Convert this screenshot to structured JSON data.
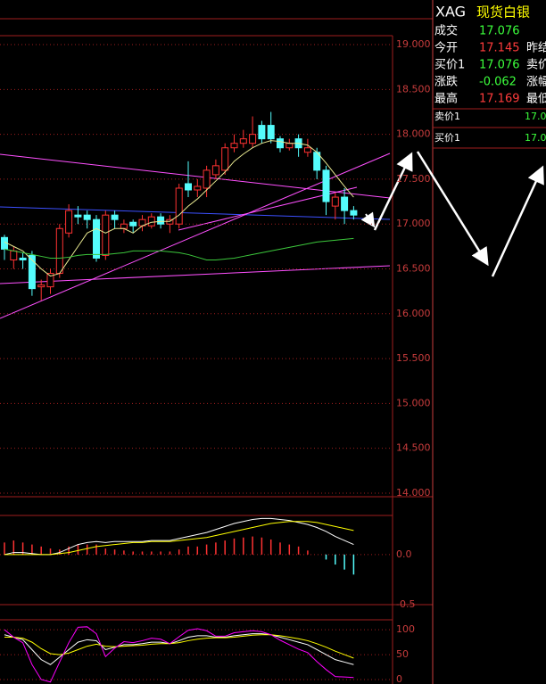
{
  "chart_data": [
    {
      "type": "candlestick",
      "up_color": "#ff3232",
      "down_color": "#54fcfc",
      "grid": true,
      "ylim": [
        13.96,
        19.1
      ],
      "yticks": [
        {
          "value": 19,
          "label": "19.000"
        },
        {
          "value": 18.5,
          "label": "18.500"
        },
        {
          "value": 18,
          "label": "18.000"
        },
        {
          "value": 17.5,
          "label": "17.500"
        },
        {
          "value": 17,
          "label": "17.000"
        },
        {
          "value": 16.5,
          "label": "16.500"
        },
        {
          "value": 16,
          "label": "16.000"
        },
        {
          "value": 15.5,
          "label": "15.500"
        },
        {
          "value": 15,
          "label": "15.000"
        },
        {
          "value": 14.5,
          "label": "14.500"
        },
        {
          "value": 14,
          "label": "14.000"
        }
      ],
      "open": [
        16.85,
        16.6,
        16.62,
        16.65,
        16.3,
        16.3,
        16.45,
        16.9,
        17.1,
        17.1,
        17.05,
        16.65,
        17.1,
        16.95,
        17.02,
        16.98,
        16.98,
        17.08,
        17.0,
        17.0,
        17.45,
        17.38,
        17.4,
        17.55,
        17.6,
        17.85,
        17.9,
        17.9,
        18.1,
        18.1,
        17.95,
        17.85,
        17.95,
        17.8,
        17.8,
        17.6,
        17.2,
        17.3,
        17.15
      ],
      "high": [
        16.88,
        16.75,
        16.68,
        16.7,
        16.38,
        16.5,
        17.0,
        17.22,
        17.2,
        17.15,
        17.1,
        17.15,
        17.15,
        17.05,
        17.05,
        17.1,
        17.12,
        17.12,
        17.1,
        17.45,
        17.7,
        17.5,
        17.65,
        17.72,
        17.9,
        18.0,
        18.05,
        18.2,
        18.15,
        18.25,
        17.98,
        17.95,
        18.0,
        17.95,
        17.85,
        17.65,
        17.35,
        17.4,
        17.2
      ],
      "low": [
        16.6,
        16.5,
        16.5,
        16.2,
        16.15,
        16.22,
        16.4,
        16.85,
        17.0,
        16.95,
        16.58,
        16.6,
        16.95,
        16.9,
        16.9,
        16.92,
        16.95,
        16.95,
        16.9,
        16.95,
        17.3,
        17.3,
        17.3,
        17.5,
        17.55,
        17.8,
        17.85,
        17.85,
        17.9,
        17.9,
        17.8,
        17.82,
        17.75,
        17.75,
        17.5,
        17.1,
        17.05,
        17.0,
        17.05
      ],
      "close": [
        16.72,
        16.7,
        16.6,
        16.28,
        16.32,
        16.45,
        16.95,
        17.15,
        17.08,
        17.05,
        16.62,
        17.1,
        17.05,
        17.0,
        16.98,
        17.05,
        17.08,
        17.0,
        17.05,
        17.4,
        17.38,
        17.42,
        17.6,
        17.65,
        17.85,
        17.9,
        17.95,
        18.0,
        17.95,
        17.95,
        17.85,
        17.9,
        17.85,
        17.85,
        17.6,
        17.25,
        17.3,
        17.15,
        17.1
      ],
      "series": [
        {
          "color": "#e8e890",
          "values": [
            16.8,
            16.75,
            16.7,
            16.6,
            16.5,
            16.42,
            16.45,
            16.6,
            16.75,
            16.9,
            16.95,
            16.9,
            16.95,
            16.95,
            16.9,
            16.98,
            17.02,
            17.03,
            17.03,
            17.1,
            17.2,
            17.28,
            17.38,
            17.48,
            17.58,
            17.7,
            17.78,
            17.85,
            17.9,
            17.93,
            17.92,
            17.9,
            17.9,
            17.88,
            17.8,
            17.68,
            17.55,
            17.42,
            17.3
          ]
        },
        {
          "color": "#3cc83c",
          "values": [
            16.72,
            16.7,
            16.68,
            16.66,
            16.64,
            16.62,
            16.62,
            16.63,
            16.65,
            16.66,
            16.66,
            16.66,
            16.67,
            16.68,
            16.7,
            16.7,
            16.7,
            16.7,
            16.69,
            16.68,
            16.66,
            16.63,
            16.6,
            16.6,
            16.61,
            16.62,
            16.64,
            16.66,
            16.68,
            16.7,
            16.72,
            16.74,
            16.76,
            16.78,
            16.8,
            16.81,
            16.82,
            16.83,
            16.84
          ]
        }
      ]
    },
    {
      "type": "bar",
      "up_color": "#ff3232",
      "down_color": "#54fcfc",
      "ylim": [
        -0.5,
        0.39
      ],
      "yticks": [
        {
          "value": 0,
          "label": "0.0"
        },
        -0.5
      ],
      "values": [
        0.12,
        0.14,
        0.12,
        0.1,
        0.08,
        0.06,
        0.05,
        0.08,
        0.1,
        0.1,
        0.1,
        0.06,
        0.05,
        0.04,
        0.03,
        0.03,
        0.03,
        0.03,
        0.03,
        0.05,
        0.08,
        0.08,
        0.1,
        0.12,
        0.14,
        0.16,
        0.17,
        0.18,
        0.17,
        0.15,
        0.12,
        0.1,
        0.08,
        0.04,
        0.0,
        -0.05,
        -0.1,
        -0.15,
        -0.2
      ],
      "series": [
        {
          "color": "#ffffff",
          "values": [
            0.0,
            0.02,
            0.02,
            0.01,
            0.0,
            0.0,
            0.02,
            0.06,
            0.1,
            0.12,
            0.13,
            0.12,
            0.13,
            0.13,
            0.13,
            0.13,
            0.14,
            0.14,
            0.14,
            0.16,
            0.18,
            0.2,
            0.22,
            0.25,
            0.28,
            0.31,
            0.33,
            0.35,
            0.36,
            0.36,
            0.35,
            0.34,
            0.32,
            0.3,
            0.27,
            0.23,
            0.18,
            0.14,
            0.1
          ]
        },
        {
          "color": "#ffff00",
          "values": [
            0.0,
            0.0,
            0.0,
            0.0,
            0.0,
            0.0,
            0.01,
            0.02,
            0.04,
            0.06,
            0.08,
            0.09,
            0.1,
            0.11,
            0.12,
            0.12,
            0.13,
            0.13,
            0.13,
            0.14,
            0.15,
            0.16,
            0.17,
            0.19,
            0.21,
            0.23,
            0.25,
            0.27,
            0.29,
            0.31,
            0.32,
            0.33,
            0.33,
            0.33,
            0.32,
            0.3,
            0.28,
            0.26,
            0.24
          ]
        }
      ]
    },
    {
      "type": "line",
      "ylim": [
        -9,
        120
      ],
      "yticks": [
        100,
        50,
        0
      ],
      "series": [
        {
          "color": "#ffffff",
          "values": [
            90,
            85,
            80,
            60,
            40,
            30,
            45,
            60,
            75,
            80,
            78,
            60,
            65,
            70,
            70,
            72,
            75,
            75,
            72,
            78,
            85,
            88,
            88,
            85,
            85,
            88,
            90,
            92,
            92,
            90,
            85,
            80,
            75,
            70,
            60,
            50,
            40,
            35,
            30
          ]
        },
        {
          "color": "#ffff00",
          "values": [
            85,
            85,
            83,
            75,
            62,
            52,
            50,
            53,
            60,
            67,
            71,
            67,
            66,
            67,
            68,
            69,
            71,
            72,
            72,
            74,
            78,
            81,
            83,
            84,
            84,
            85,
            87,
            89,
            90,
            90,
            88,
            85,
            82,
            78,
            72,
            65,
            57,
            50,
            43
          ]
        },
        {
          "color": "#ff00ff",
          "values": [
            100,
            85,
            74,
            30,
            0,
            -5,
            35,
            74,
            105,
            106,
            92,
            46,
            63,
            76,
            74,
            78,
            83,
            81,
            72,
            86,
            99,
            102,
            98,
            87,
            87,
            94,
            96,
            98,
            96,
            90,
            79,
            70,
            61,
            54,
            36,
            20,
            6,
            5,
            4
          ]
        }
      ]
    }
  ],
  "quote_panel": {
    "code": "XAG",
    "name": "现货白银",
    "rows": [
      [
        "成交",
        "17.076",
        ""
      ],
      [
        "今开",
        "17.145",
        "昨结"
      ],
      [
        "买价1",
        "17.076",
        "卖价"
      ],
      [
        "涨跌",
        "-0.062",
        "涨幅"
      ],
      [
        "最高",
        "17.169",
        "最低"
      ]
    ],
    "ask": [
      "卖价1",
      "17.0"
    ],
    "bid": [
      "买价1",
      "17.0"
    ]
  }
}
